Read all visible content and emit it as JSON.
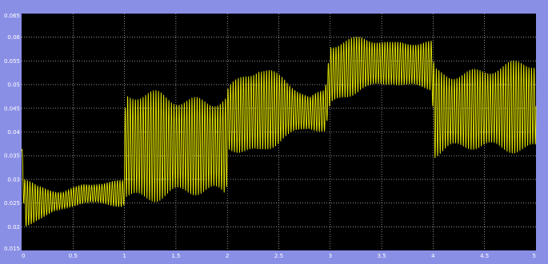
{
  "window": {
    "background": "#8a8fe6"
  },
  "chart_data": {
    "type": "line",
    "title": "",
    "xlabel": "",
    "ylabel": "",
    "xlim": [
      0,
      5
    ],
    "ylim": [
      0.015,
      0.065
    ],
    "grid": true,
    "plot_background": "#000000",
    "grid_color": "#e8e8e8",
    "line_color": "#e6e600",
    "x_ticks": [
      0,
      0.5,
      1,
      1.5,
      2,
      2.5,
      3,
      3.5,
      4,
      4.5,
      5
    ],
    "x_tick_labels": [
      "0",
      "0.5",
      "1",
      "1.5",
      "2",
      "2.5",
      "3",
      "3.5",
      "4",
      "4.5",
      "5"
    ],
    "y_ticks": [
      0.015,
      0.02,
      0.025,
      0.03,
      0.035,
      0.04,
      0.045,
      0.05,
      0.055,
      0.06,
      0.065
    ],
    "y_tick_labels": [
      "0.015",
      "0.02",
      "0.025",
      "0.03",
      "0.035",
      "0.04",
      "0.045",
      "0.05",
      "0.055",
      "0.06",
      "0.065"
    ],
    "series": [
      {
        "oscillation_frequency_hz": 40,
        "envelope": [
          {
            "x": 0.0,
            "center": 0.036,
            "amplitude": 0.002
          },
          {
            "x": 0.03,
            "center": 0.025,
            "amplitude": 0.006
          },
          {
            "x": 0.15,
            "center": 0.025,
            "amplitude": 0.004
          },
          {
            "x": 0.4,
            "center": 0.0255,
            "amplitude": 0.0025
          },
          {
            "x": 0.6,
            "center": 0.027,
            "amplitude": 0.0025
          },
          {
            "x": 0.99,
            "center": 0.027,
            "amplitude": 0.003
          },
          {
            "x": 1.01,
            "center": 0.037,
            "amplitude": 0.012
          },
          {
            "x": 1.5,
            "center": 0.037,
            "amplitude": 0.0125
          },
          {
            "x": 1.99,
            "center": 0.037,
            "amplitude": 0.013
          },
          {
            "x": 2.01,
            "center": 0.043,
            "amplitude": 0.008
          },
          {
            "x": 2.3,
            "center": 0.0445,
            "amplitude": 0.01
          },
          {
            "x": 2.55,
            "center": 0.045,
            "amplitude": 0.007
          },
          {
            "x": 2.8,
            "center": 0.044,
            "amplitude": 0.004
          },
          {
            "x": 2.95,
            "center": 0.0445,
            "amplitude": 0.006
          },
          {
            "x": 3.0,
            "center": 0.052,
            "amplitude": 0.009
          },
          {
            "x": 3.3,
            "center": 0.0545,
            "amplitude": 0.0065
          },
          {
            "x": 3.6,
            "center": 0.0545,
            "amplitude": 0.0045
          },
          {
            "x": 3.99,
            "center": 0.054,
            "amplitude": 0.006
          },
          {
            "x": 4.01,
            "center": 0.044,
            "amplitude": 0.011
          },
          {
            "x": 4.5,
            "center": 0.045,
            "amplitude": 0.01
          },
          {
            "x": 5.0,
            "center": 0.0455,
            "amplitude": 0.01
          }
        ]
      }
    ]
  }
}
